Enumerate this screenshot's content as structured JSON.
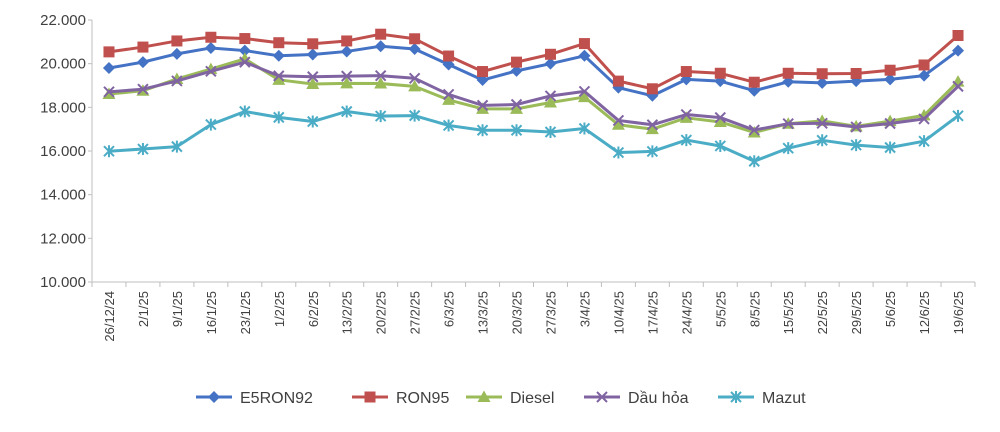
{
  "chart_data": {
    "type": "line",
    "title": "",
    "xlabel": "",
    "ylabel": "",
    "ylim": [
      10000,
      22000
    ],
    "yticks": [
      "10.000",
      "12.000",
      "14.000",
      "16.000",
      "18.000",
      "20.000",
      "22.000"
    ],
    "ytick_values": [
      10000,
      12000,
      14000,
      16000,
      18000,
      20000,
      22000
    ],
    "grid": false,
    "legend_position": "bottom",
    "categories": [
      "26/12/24",
      "2/1/25",
      "9/1/25",
      "16/1/25",
      "23/1/25",
      "1/2/25",
      "6/2/25",
      "13/2/25",
      "20/2/25",
      "27/2/25",
      "6/3/25",
      "13/3/25",
      "20/3/25",
      "27/3/25",
      "3/4/25",
      "10/4/25",
      "17/4/25",
      "24/4/25",
      "5/5/25",
      "8/5/25",
      "15/5/25",
      "22/5/25",
      "29/5/25",
      "5/6/25",
      "12/6/25",
      "19/6/25"
    ],
    "series": [
      {
        "name": "E5RON92",
        "color": "#4472C4",
        "marker": "diamond",
        "values": [
          19800,
          20070,
          20450,
          20720,
          20600,
          20360,
          20420,
          20560,
          20800,
          20670,
          19960,
          19250,
          19670,
          20000,
          20360,
          18900,
          18530,
          19280,
          19200,
          18760,
          19170,
          19120,
          19200,
          19280,
          19450,
          20600
        ]
      },
      {
        "name": "RON95",
        "color": "#C0504D",
        "marker": "square",
        "values": [
          20540,
          20760,
          21040,
          21210,
          21150,
          20960,
          20910,
          21040,
          21350,
          21140,
          20350,
          19640,
          20070,
          20430,
          20920,
          19200,
          18850,
          19640,
          19560,
          19150,
          19560,
          19540,
          19550,
          19700,
          19940,
          21290
        ]
      },
      {
        "name": "Diesel",
        "color": "#9BBB59",
        "marker": "triangle",
        "values": [
          18610,
          18760,
          19300,
          19750,
          20220,
          19260,
          19070,
          19100,
          19090,
          18960,
          18340,
          17930,
          17930,
          18220,
          18470,
          17200,
          17000,
          17520,
          17330,
          16850,
          17250,
          17380,
          17130,
          17370,
          17630,
          19180
        ]
      },
      {
        "name": "Dầu hỏa",
        "color": "#8064A2",
        "marker": "x",
        "values": [
          18710,
          18830,
          19210,
          19650,
          20070,
          19440,
          19400,
          19430,
          19450,
          19330,
          18590,
          18090,
          18130,
          18520,
          18730,
          17400,
          17200,
          17670,
          17530,
          16960,
          17250,
          17270,
          17100,
          17260,
          17470,
          18960
        ]
      },
      {
        "name": "Mazut",
        "color": "#4BACC6",
        "marker": "star",
        "values": [
          15990,
          16090,
          16200,
          17210,
          17810,
          17540,
          17350,
          17810,
          17600,
          17620,
          17170,
          16950,
          16950,
          16870,
          17030,
          15930,
          15980,
          16500,
          16230,
          15530,
          16130,
          16490,
          16270,
          16160,
          16450,
          17610
        ]
      }
    ]
  }
}
